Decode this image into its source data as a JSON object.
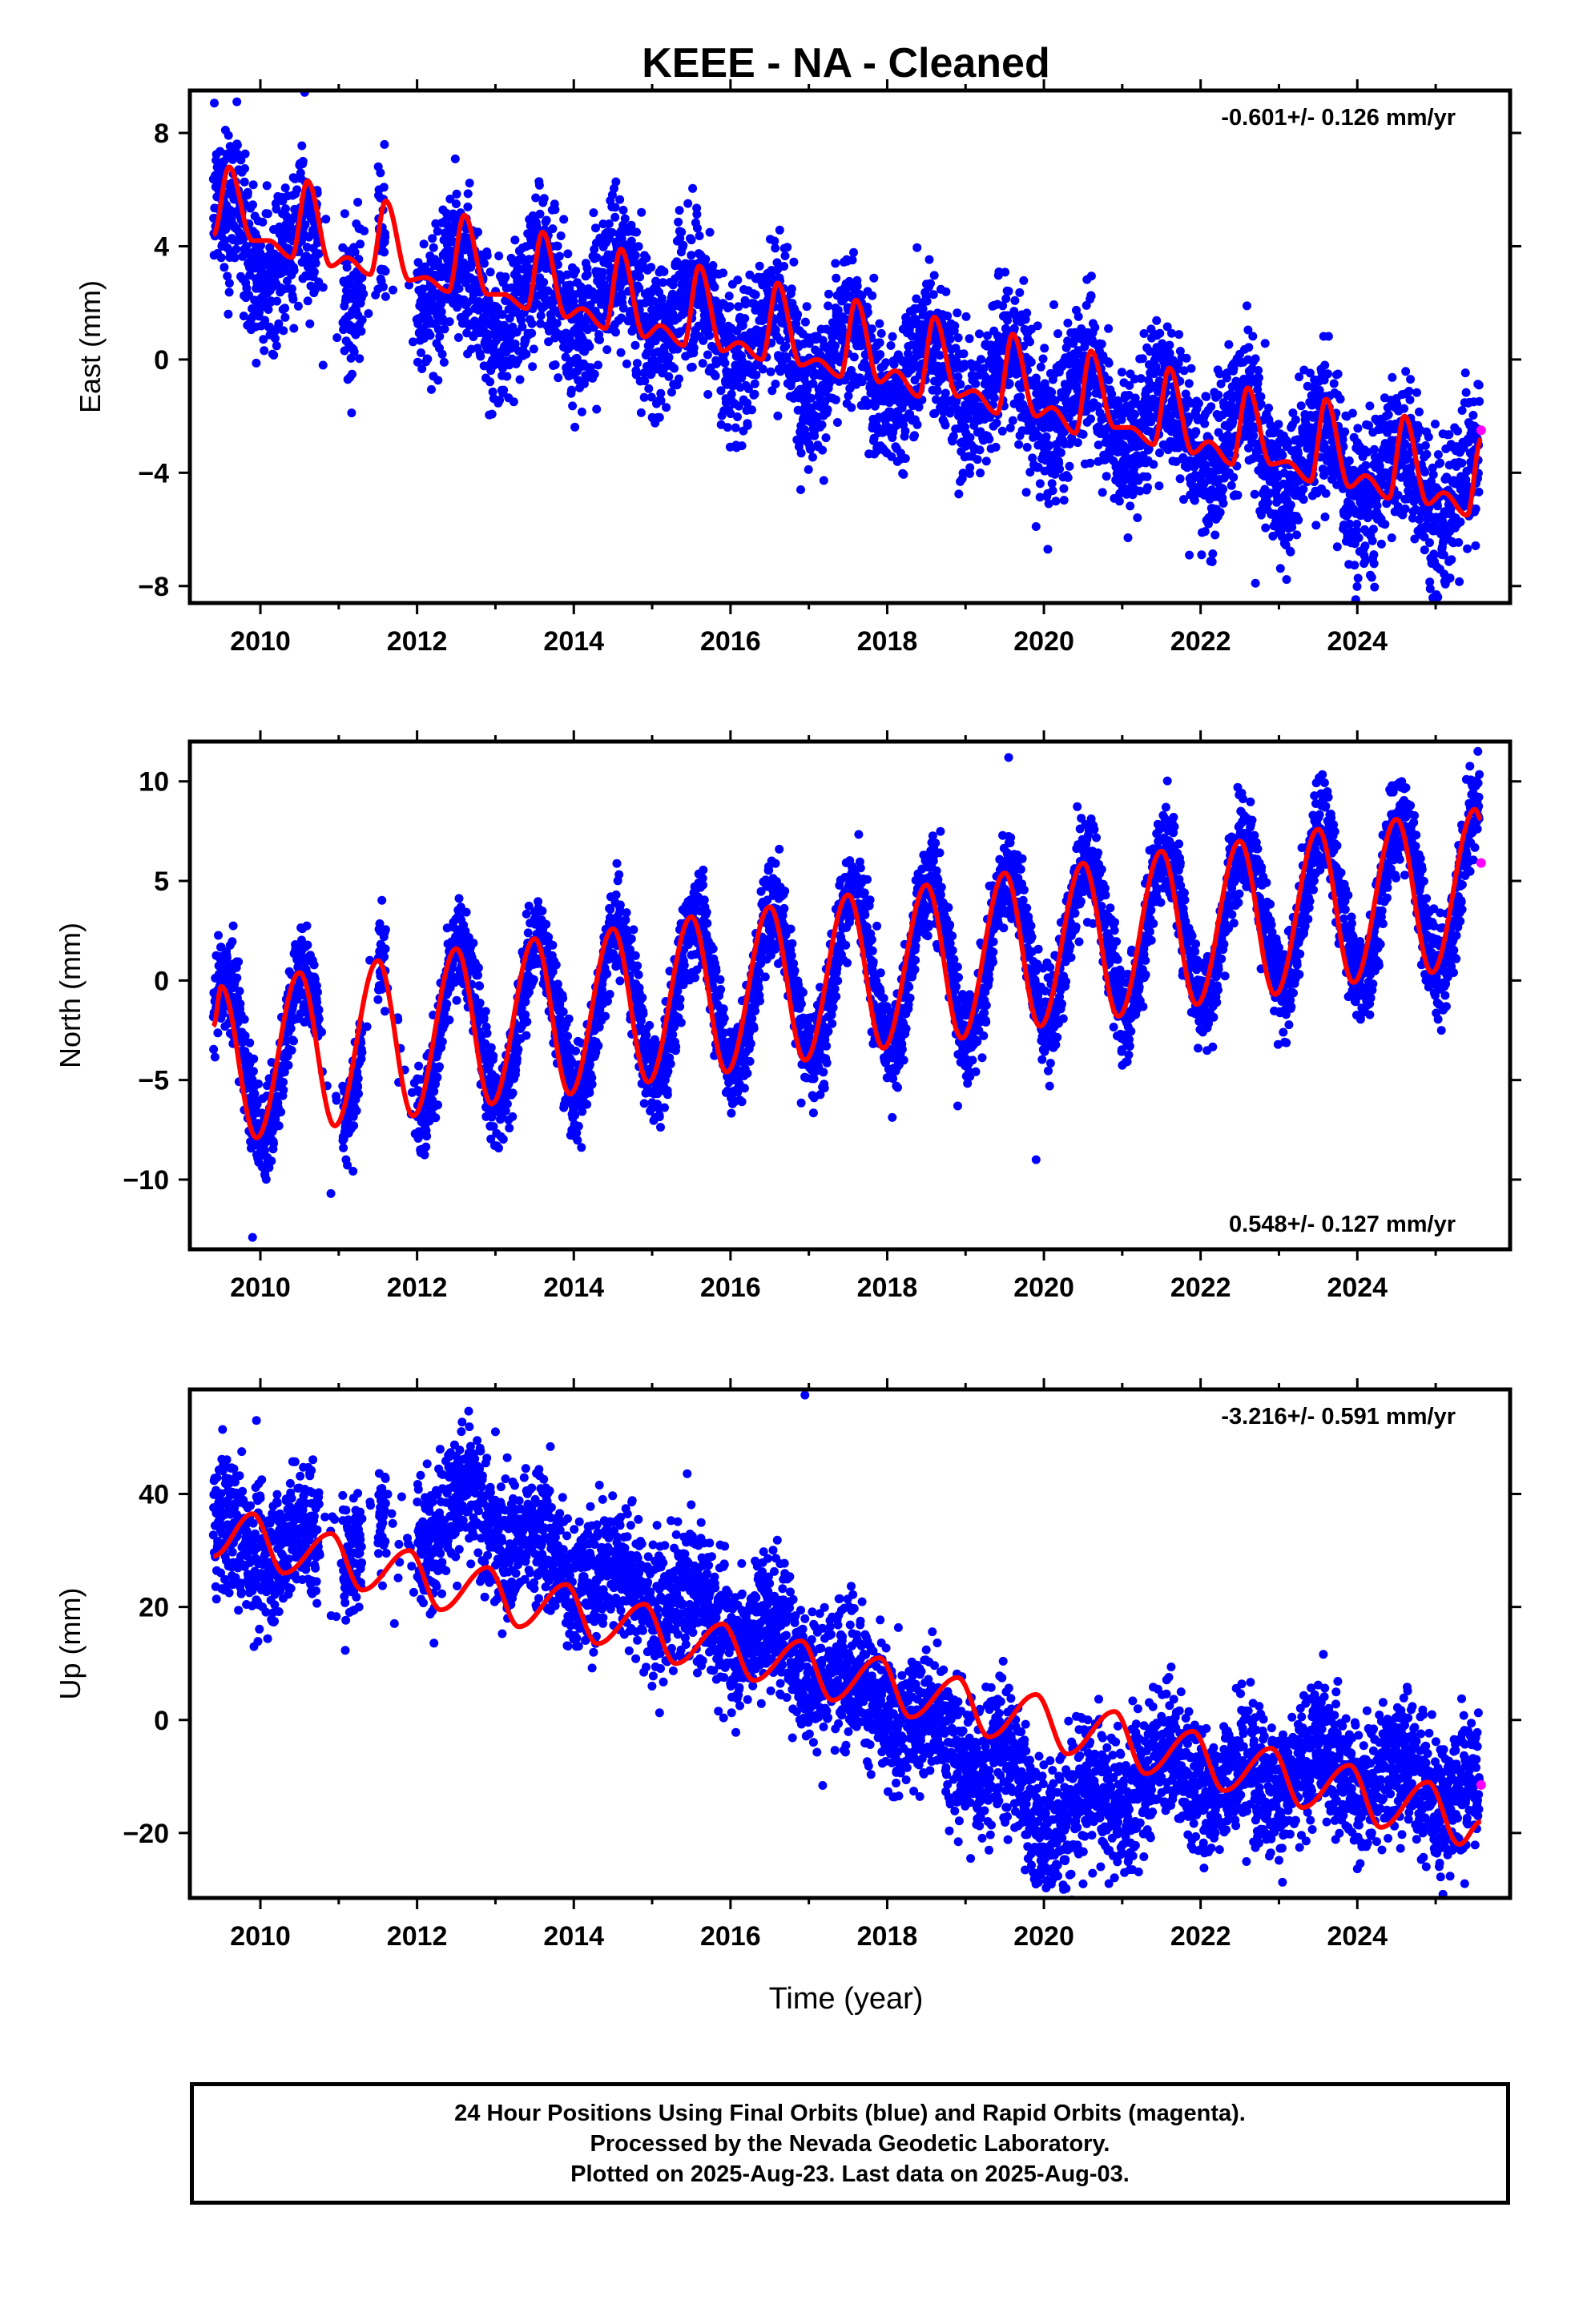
{
  "title": "KEEE  - NA - Cleaned",
  "xlabel": "Time (year)",
  "caption": [
    "24 Hour Positions Using Final Orbits (blue) and Rapid Orbits (magenta).",
    "Processed by the Nevada Geodetic Laboratory.",
    "Plotted on 2025-Aug-23. Last data on 2025-Aug-03."
  ],
  "colors": {
    "final": "#0000ff",
    "rapid": "#ff00ff",
    "model": "#ff0000",
    "frame": "#000000"
  },
  "chart_data": [
    {
      "type": "scatter",
      "ylabel": "East (mm)",
      "rate_label": "-0.601+/- 0.126 mm/yr",
      "rate_position": "top-right",
      "xlim": [
        2009.1,
        2025.95
      ],
      "ylim": [
        -8.6,
        9.5
      ],
      "xticks": [
        2010,
        2012,
        2014,
        2016,
        2018,
        2020,
        2022,
        2024
      ],
      "yticks": [
        8,
        4,
        0,
        -4,
        -8
      ],
      "series": [
        {
          "style": "points",
          "color": "#0000ff",
          "gaps": [
            [
              2010.75,
              2011.05
            ],
            [
              2011.3,
              2011.5
            ],
            [
              2011.6,
              2012.0
            ]
          ],
          "trend": [
            [
              2009.4,
              4.5
            ],
            [
              2009.9,
              4.2
            ],
            [
              2010.5,
              3.6
            ],
            [
              2012.0,
              2.8
            ],
            [
              2013.0,
              1.9
            ],
            [
              2014.0,
              2.3
            ],
            [
              2015.0,
              2.0
            ],
            [
              2016.0,
              1.1
            ],
            [
              2017.0,
              0.2
            ],
            [
              2018.0,
              -0.4
            ],
            [
              2019.0,
              -0.5
            ],
            [
              2020.0,
              -1.3
            ],
            [
              2021.0,
              -1.8
            ],
            [
              2022.0,
              -2.5
            ],
            [
              2023.0,
              -3.3
            ],
            [
              2024.0,
              -3.8
            ],
            [
              2025.0,
              -4.5
            ],
            [
              2025.55,
              -4.6
            ]
          ],
          "seasonal_amplitude": 1.3,
          "scatter_mm": 1.3,
          "outliers": [
            [
              2019.9,
              -5.9
            ],
            [
              2020.05,
              -6.7
            ],
            [
              2022.7,
              -7.9
            ],
            [
              2009.7,
              9.1
            ],
            [
              2010.8,
              -0.2
            ],
            [
              2011.3,
              1.4
            ]
          ]
        },
        {
          "style": "points",
          "color": "#ff00ff",
          "points": [
            [
              2025.58,
              -2.5
            ]
          ]
        },
        {
          "style": "line",
          "color": "#ff0000",
          "points": [
            [
              2009.4,
              4.4
            ],
            [
              2009.6,
              6.8
            ],
            [
              2009.9,
              4.2
            ],
            [
              2010.1,
              4.2
            ],
            [
              2010.4,
              3.6
            ],
            [
              2010.6,
              6.3
            ],
            [
              2010.9,
              3.3
            ],
            [
              2011.1,
              3.6
            ],
            [
              2011.4,
              3.0
            ],
            [
              2011.6,
              5.6
            ],
            [
              2011.9,
              2.8
            ],
            [
              2012.1,
              2.9
            ],
            [
              2012.4,
              2.4
            ],
            [
              2012.6,
              5.1
            ],
            [
              2012.9,
              2.3
            ],
            [
              2013.1,
              2.3
            ],
            [
              2013.4,
              1.8
            ],
            [
              2013.6,
              4.5
            ],
            [
              2013.9,
              1.5
            ],
            [
              2014.1,
              1.8
            ],
            [
              2014.4,
              1.1
            ],
            [
              2014.6,
              3.9
            ],
            [
              2014.9,
              0.8
            ],
            [
              2015.1,
              1.2
            ],
            [
              2015.4,
              0.5
            ],
            [
              2015.6,
              3.3
            ],
            [
              2015.9,
              0.3
            ],
            [
              2016.1,
              0.6
            ],
            [
              2016.4,
              0.0
            ],
            [
              2016.6,
              2.7
            ],
            [
              2016.9,
              -0.2
            ],
            [
              2017.1,
              0.0
            ],
            [
              2017.4,
              -0.6
            ],
            [
              2017.6,
              2.1
            ],
            [
              2017.9,
              -0.8
            ],
            [
              2018.1,
              -0.4
            ],
            [
              2018.4,
              -1.3
            ],
            [
              2018.6,
              1.5
            ],
            [
              2018.9,
              -1.3
            ],
            [
              2019.1,
              -1.1
            ],
            [
              2019.4,
              -1.9
            ],
            [
              2019.6,
              0.9
            ],
            [
              2019.9,
              -2.0
            ],
            [
              2020.1,
              -1.7
            ],
            [
              2020.4,
              -2.6
            ],
            [
              2020.6,
              0.3
            ],
            [
              2020.9,
              -2.4
            ],
            [
              2021.1,
              -2.4
            ],
            [
              2021.4,
              -3.0
            ],
            [
              2021.6,
              -0.3
            ],
            [
              2021.9,
              -3.3
            ],
            [
              2022.1,
              -2.9
            ],
            [
              2022.4,
              -3.7
            ],
            [
              2022.6,
              -1.0
            ],
            [
              2022.9,
              -3.7
            ],
            [
              2023.1,
              -3.6
            ],
            [
              2023.4,
              -4.3
            ],
            [
              2023.6,
              -1.4
            ],
            [
              2023.9,
              -4.5
            ],
            [
              2024.1,
              -4.1
            ],
            [
              2024.4,
              -4.9
            ],
            [
              2024.6,
              -2.0
            ],
            [
              2024.9,
              -5.1
            ],
            [
              2025.1,
              -4.7
            ],
            [
              2025.4,
              -5.5
            ],
            [
              2025.58,
              -2.8
            ]
          ]
        }
      ]
    },
    {
      "type": "scatter",
      "ylabel": "North (mm)",
      "rate_label": "0.548+/- 0.127 mm/yr",
      "rate_position": "bottom-right",
      "xlim": [
        2009.1,
        2025.95
      ],
      "ylim": [
        -13.5,
        12.0
      ],
      "xticks": [
        2010,
        2012,
        2014,
        2016,
        2018,
        2020,
        2022,
        2024
      ],
      "yticks": [
        10,
        5,
        0,
        -5,
        -10
      ],
      "series": [
        {
          "style": "points",
          "color": "#0000ff",
          "gaps": [
            [
              2010.75,
              2011.05
            ],
            [
              2011.3,
              2011.5
            ],
            [
              2011.6,
              2012.0
            ]
          ],
          "trend": [
            [
              2009.4,
              -4.0
            ],
            [
              2010.0,
              -3.8
            ],
            [
              2012.0,
              -2.6
            ],
            [
              2014.0,
              -1.7
            ],
            [
              2016.0,
              -0.5
            ],
            [
              2018.0,
              0.7
            ],
            [
              2020.0,
              1.8
            ],
            [
              2022.0,
              2.9
            ],
            [
              2024.0,
              3.9
            ],
            [
              2025.55,
              4.8
            ]
          ],
          "seasonal_amplitude": 4.0,
          "scatter_mm": 1.2,
          "outliers": [
            [
              2019.55,
              11.2
            ],
            [
              2019.9,
              -9.0
            ],
            [
              2009.9,
              -12.9
            ],
            [
              2010.9,
              -10.7
            ],
            [
              2018.9,
              -6.3
            ]
          ]
        },
        {
          "style": "points",
          "color": "#ff00ff",
          "points": [
            [
              2025.58,
              5.9
            ]
          ]
        },
        {
          "style": "line",
          "color": "#ff0000",
          "points": [
            [
              2009.4,
              -2.3
            ],
            [
              2009.5,
              -0.3
            ],
            [
              2009.95,
              -7.9
            ],
            [
              2010.5,
              0.4
            ],
            [
              2010.95,
              -7.3
            ],
            [
              2011.5,
              1.0
            ],
            [
              2011.95,
              -6.8
            ],
            [
              2012.5,
              1.6
            ],
            [
              2012.95,
              -6.2
            ],
            [
              2013.5,
              2.1
            ],
            [
              2013.95,
              -5.7
            ],
            [
              2014.5,
              2.6
            ],
            [
              2014.95,
              -5.1
            ],
            [
              2015.5,
              3.2
            ],
            [
              2015.95,
              -4.6
            ],
            [
              2016.5,
              3.7
            ],
            [
              2016.95,
              -4.0
            ],
            [
              2017.5,
              4.3
            ],
            [
              2017.95,
              -3.4
            ],
            [
              2018.5,
              4.8
            ],
            [
              2018.95,
              -2.9
            ],
            [
              2019.5,
              5.4
            ],
            [
              2019.95,
              -2.3
            ],
            [
              2020.5,
              5.9
            ],
            [
              2020.95,
              -1.8
            ],
            [
              2021.5,
              6.5
            ],
            [
              2021.95,
              -1.2
            ],
            [
              2022.5,
              7.0
            ],
            [
              2022.95,
              -0.7
            ],
            [
              2023.5,
              7.6
            ],
            [
              2023.95,
              -0.1
            ],
            [
              2024.5,
              8.1
            ],
            [
              2024.95,
              0.4
            ],
            [
              2025.5,
              8.6
            ],
            [
              2025.58,
              8.1
            ]
          ]
        }
      ]
    },
    {
      "type": "scatter",
      "ylabel": "Up (mm)",
      "rate_label": "-3.216+/- 0.591 mm/yr",
      "rate_position": "top-right",
      "xlim": [
        2009.1,
        2025.95
      ],
      "ylim": [
        -31.5,
        58.5
      ],
      "xticks": [
        2010,
        2012,
        2014,
        2016,
        2018,
        2020,
        2022,
        2024
      ],
      "yticks": [
        40,
        20,
        0,
        -20
      ],
      "series": [
        {
          "style": "points",
          "color": "#0000ff",
          "gaps": [
            [
              2010.75,
              2011.05
            ],
            [
              2011.3,
              2011.5
            ],
            [
              2011.6,
              2012.0
            ]
          ],
          "trend": [
            [
              2009.4,
              32
            ],
            [
              2010.5,
              31
            ],
            [
              2012.0,
              33
            ],
            [
              2012.7,
              38
            ],
            [
              2013.5,
              30
            ],
            [
              2014.5,
              25
            ],
            [
              2015.5,
              20
            ],
            [
              2016.5,
              15
            ],
            [
              2017.5,
              7
            ],
            [
              2018.5,
              -2
            ],
            [
              2019.5,
              -8
            ],
            [
              2020.0,
              -17
            ],
            [
              2020.5,
              -16
            ],
            [
              2021.5,
              -8
            ],
            [
              2022.5,
              -11
            ],
            [
              2023.5,
              -8
            ],
            [
              2024.5,
              -10
            ],
            [
              2025.55,
              -13
            ]
          ],
          "seasonal_amplitude": 3.5,
          "scatter_mm": 6.0,
          "outliers": [
            [
              2016.95,
              57.5
            ],
            [
              2009.95,
              53.0
            ],
            [
              2013.0,
              51.0
            ],
            [
              2020.1,
              -28.5
            ],
            [
              2020.5,
              -29.0
            ]
          ]
        },
        {
          "style": "points",
          "color": "#ff00ff",
          "points": [
            [
              2025.58,
              -11.5
            ]
          ]
        },
        {
          "style": "line",
          "color": "#ff0000",
          "points": [
            [
              2009.4,
              29
            ],
            [
              2009.9,
              36.5
            ],
            [
              2010.3,
              26
            ],
            [
              2010.9,
              33
            ],
            [
              2011.3,
              23
            ],
            [
              2011.9,
              30
            ],
            [
              2012.3,
              19.5
            ],
            [
              2012.9,
              27
            ],
            [
              2013.3,
              16.5
            ],
            [
              2013.9,
              24
            ],
            [
              2014.3,
              13.5
            ],
            [
              2014.9,
              20.5
            ],
            [
              2015.3,
              10
            ],
            [
              2015.9,
              17
            ],
            [
              2016.3,
              7
            ],
            [
              2016.9,
              14
            ],
            [
              2017.3,
              3.5
            ],
            [
              2017.9,
              11
            ],
            [
              2018.3,
              0.5
            ],
            [
              2018.9,
              7.5
            ],
            [
              2019.3,
              -3
            ],
            [
              2019.9,
              4.5
            ],
            [
              2020.3,
              -6
            ],
            [
              2020.9,
              1.5
            ],
            [
              2021.3,
              -9.5
            ],
            [
              2021.9,
              -2
            ],
            [
              2022.3,
              -12.5
            ],
            [
              2022.9,
              -5
            ],
            [
              2023.3,
              -15.5
            ],
            [
              2023.9,
              -8
            ],
            [
              2024.3,
              -19
            ],
            [
              2024.9,
              -11
            ],
            [
              2025.3,
              -22
            ],
            [
              2025.58,
              -18
            ]
          ]
        }
      ]
    }
  ]
}
